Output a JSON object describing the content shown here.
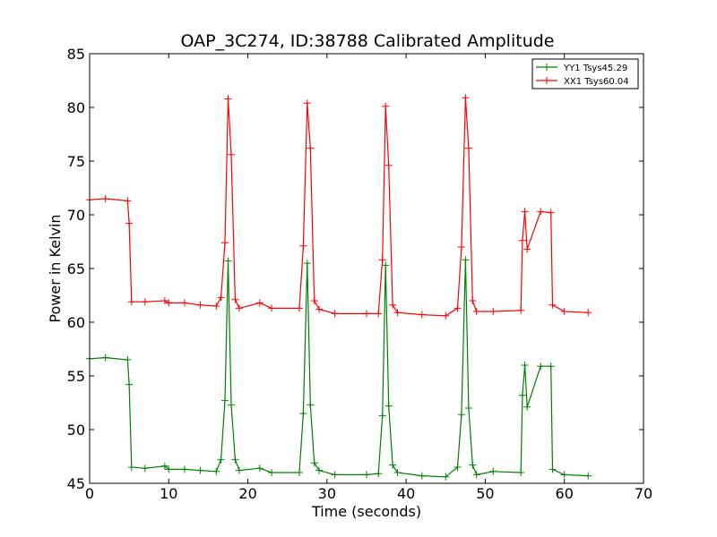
{
  "chart_data": {
    "type": "line",
    "title": "OAP_3C274, ID:38788 Calibrated Amplitude",
    "xlabel": "Time (seconds)",
    "ylabel": "Power in Kelvin",
    "xlim": [
      0,
      70
    ],
    "ylim": [
      45,
      85
    ],
    "xticks": [
      0,
      10,
      20,
      30,
      40,
      50,
      60,
      70
    ],
    "yticks": [
      45,
      50,
      55,
      60,
      65,
      70,
      75,
      80,
      85
    ],
    "grid": false,
    "legend_position": "top-right",
    "marker": "+",
    "series": [
      {
        "name": "YY1 Tsys45.29",
        "color": "#008000",
        "x": [
          0,
          2,
          4.8,
          5.0,
          5.3,
          7,
          9.5,
          10,
          12,
          14,
          16,
          16.6,
          17.1,
          17.5,
          17.9,
          18.4,
          18.9,
          21.5,
          23,
          26.5,
          27.0,
          27.5,
          27.9,
          28.4,
          29,
          31,
          35,
          36.5,
          37.0,
          37.4,
          37.8,
          38.3,
          38.9,
          42,
          45,
          46.5,
          47.0,
          47.5,
          47.9,
          48.4,
          48.9,
          51,
          54.5,
          54.7,
          55.0,
          55.3,
          57,
          58.3,
          58.5,
          60,
          63
        ],
        "y": [
          56.6,
          56.7,
          56.5,
          54.2,
          46.5,
          46.4,
          46.6,
          46.3,
          46.3,
          46.2,
          46.1,
          47.2,
          52.7,
          65.7,
          52.3,
          47.2,
          46.2,
          46.4,
          46.0,
          46.0,
          51.5,
          65.5,
          52.3,
          46.9,
          46.2,
          45.8,
          45.8,
          45.9,
          51.3,
          65.3,
          52.2,
          46.7,
          46.0,
          45.7,
          45.6,
          46.5,
          51.4,
          65.8,
          52.0,
          46.7,
          45.8,
          46.1,
          46.0,
          53.2,
          56.0,
          52.1,
          55.9,
          55.9,
          46.3,
          45.8,
          45.7
        ]
      },
      {
        "name": "XX1 Tsys60.04",
        "color": "#ff0000",
        "x": [
          0,
          2,
          4.8,
          5.0,
          5.3,
          7,
          9.5,
          10,
          12,
          14,
          16,
          16.6,
          17.1,
          17.5,
          17.9,
          18.4,
          18.9,
          21.5,
          23,
          26.5,
          27.0,
          27.5,
          27.9,
          28.4,
          29,
          31,
          35,
          36.5,
          37.0,
          37.4,
          37.8,
          38.3,
          38.9,
          42,
          45,
          46.5,
          47.0,
          47.5,
          47.9,
          48.4,
          48.9,
          51,
          54.5,
          54.7,
          55.0,
          55.3,
          57,
          58.3,
          58.5,
          60,
          63
        ],
        "y": [
          71.4,
          71.5,
          71.3,
          69.2,
          61.9,
          61.9,
          62.0,
          61.8,
          61.8,
          61.6,
          61.5,
          62.3,
          67.4,
          80.8,
          75.6,
          62.1,
          61.3,
          61.8,
          61.3,
          61.3,
          67.1,
          80.4,
          76.2,
          62.0,
          61.2,
          60.8,
          60.8,
          60.8,
          65.8,
          80.1,
          74.6,
          61.6,
          60.9,
          60.7,
          60.6,
          61.3,
          67.0,
          80.9,
          76.2,
          62.0,
          61.0,
          61.0,
          61.1,
          67.6,
          70.3,
          66.8,
          70.3,
          70.2,
          61.6,
          61.0,
          60.9
        ]
      }
    ]
  }
}
